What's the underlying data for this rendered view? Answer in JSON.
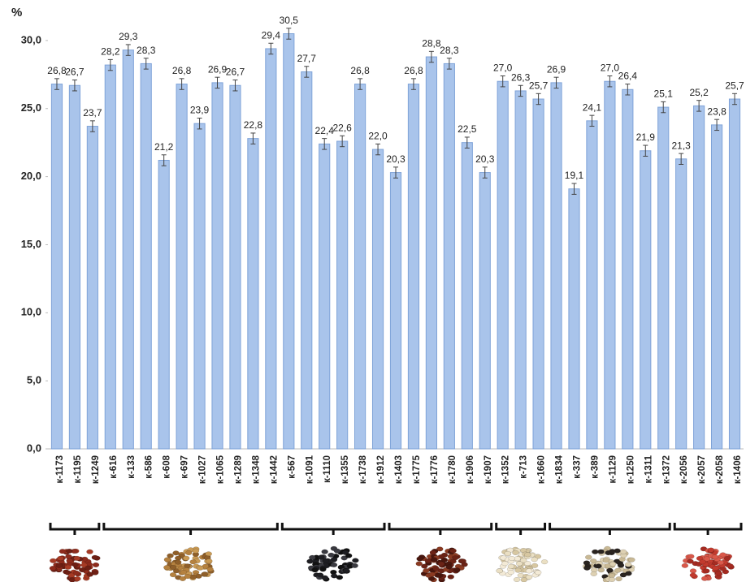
{
  "chart_data": {
    "type": "bar",
    "y_label": "%",
    "categories": [
      "к-1173",
      "к-1195",
      "к-1249",
      "к-616",
      "к-133",
      "к-586",
      "к-608",
      "к-697",
      "к-1027",
      "к-1065",
      "к-1289",
      "к-1348",
      "к-1442",
      "к-567",
      "к-1091",
      "к-1110",
      "к-1355",
      "к-1738",
      "к-1912",
      "к-1403",
      "к-1775",
      "к-1776",
      "к-1780",
      "к-1906",
      "к-1907",
      "к-1352",
      "к-713",
      "к-1660",
      "к-1834",
      "к-337",
      "к-389",
      "к-1129",
      "к-1250",
      "к-1311",
      "к-1372",
      "к-2056",
      "к-2057",
      "к-2058",
      "к-1406"
    ],
    "values": [
      26.8,
      26.7,
      23.7,
      28.2,
      29.3,
      28.3,
      21.2,
      26.8,
      23.9,
      26.9,
      26.7,
      22.8,
      29.4,
      30.5,
      27.7,
      22.4,
      22.6,
      26.8,
      22.0,
      20.3,
      26.8,
      28.8,
      28.3,
      22.5,
      20.3,
      27.0,
      26.3,
      25.7,
      26.9,
      19.1,
      24.1,
      27.0,
      26.4,
      21.9,
      25.1,
      21.3,
      25.2,
      23.8,
      25.7
    ],
    "value_labels": [
      "26,8",
      "26,7",
      "23,7",
      "28,2",
      "29,3",
      "28,3",
      "21,2",
      "26,8",
      "23,9",
      "26,9",
      "26,7",
      "22,8",
      "29,4",
      "30,5",
      "27,7",
      "22,4",
      "22,6",
      "26,8",
      "22,0",
      "20,3",
      "26,8",
      "28,8",
      "28,3",
      "22,5",
      "20,3",
      "27,0",
      "26,3",
      "25,7",
      "26,9",
      "19,1",
      "24,1",
      "27,0",
      "26,4",
      "21,9",
      "25,1",
      "21,3",
      "25,2",
      "23,8",
      "25,7"
    ],
    "errors": [
      0.4,
      0.4,
      0.4,
      0.4,
      0.4,
      0.4,
      0.4,
      0.4,
      0.4,
      0.4,
      0.4,
      0.4,
      0.4,
      0.4,
      0.4,
      0.4,
      0.4,
      0.4,
      0.4,
      0.4,
      0.4,
      0.4,
      0.4,
      0.4,
      0.4,
      0.4,
      0.4,
      0.4,
      0.4,
      0.4,
      0.4,
      0.4,
      0.4,
      0.4,
      0.4,
      0.4,
      0.4,
      0.4,
      0.4
    ],
    "color": "#a9c4eb",
    "ylim": [
      0,
      32
    ],
    "yticks": [
      {
        "value": 0,
        "label": "0,0"
      },
      {
        "value": 5,
        "label": "5,0"
      },
      {
        "value": 10,
        "label": "10,0"
      },
      {
        "value": 15,
        "label": "15,0"
      },
      {
        "value": 20,
        "label": "20,0"
      },
      {
        "value": 25,
        "label": "25,0"
      },
      {
        "value": 30,
        "label": "30,0"
      }
    ],
    "grid": false
  }
}
